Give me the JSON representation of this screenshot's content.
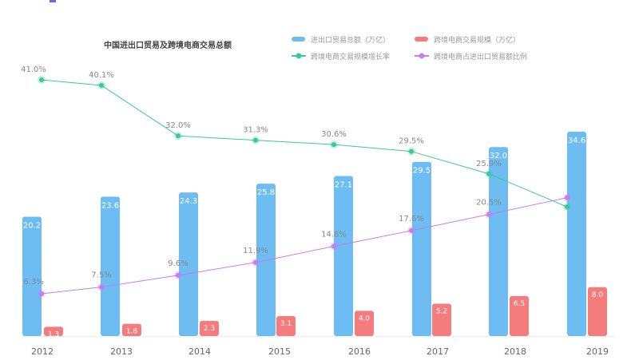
{
  "chart_data": {
    "type": "bar",
    "title": "中国进出口贸易及跨境电商交易总额",
    "categories": [
      "2012",
      "2013",
      "2014",
      "2015",
      "2016",
      "2017",
      "2018",
      "2019"
    ],
    "legend_position": "top-right",
    "grid": false,
    "series": [
      {
        "name": "进出口贸易总额（万亿）",
        "kind": "bar",
        "color": "#6dbdf2",
        "values": [
          20.2,
          23.6,
          24.3,
          25.8,
          27.1,
          29.5,
          32.0,
          34.6
        ],
        "labels": [
          "20.2",
          "23.6",
          "24.3",
          "25.8",
          "27.1",
          "29.5",
          "32.0",
          "34.6"
        ]
      },
      {
        "name": "跨境电商交易规模（万亿）",
        "kind": "bar",
        "color": "#f47c7c",
        "values": [
          1.3,
          1.8,
          2.3,
          3.1,
          4.0,
          5.2,
          6.5,
          8.0
        ],
        "labels": [
          "1.3",
          "1.8",
          "2.3",
          "3.1",
          "4.0",
          "5.2",
          "6.5",
          "8.0"
        ]
      },
      {
        "name": "跨境电商交易规模增长率",
        "kind": "line",
        "color": "#3cc99a",
        "values": [
          41.0,
          40.1,
          32.0,
          31.3,
          30.6,
          29.5,
          25.9,
          20.6
        ],
        "labels": [
          "41.0%",
          "40.1%",
          "32.0%",
          "31.3%",
          "30.6%",
          "29.5%",
          "25.9%",
          null
        ]
      },
      {
        "name": "跨境电商占进出口贸易额比例",
        "kind": "line",
        "color": "#c77cf0",
        "values": [
          6.3,
          7.5,
          9.6,
          11.9,
          14.8,
          17.6,
          20.5,
          23.5
        ],
        "labels": [
          "6.3%",
          "7.5%",
          "9.6%",
          "11.9%",
          "14.8%",
          "17.6%",
          "20.5%",
          null
        ]
      }
    ]
  }
}
